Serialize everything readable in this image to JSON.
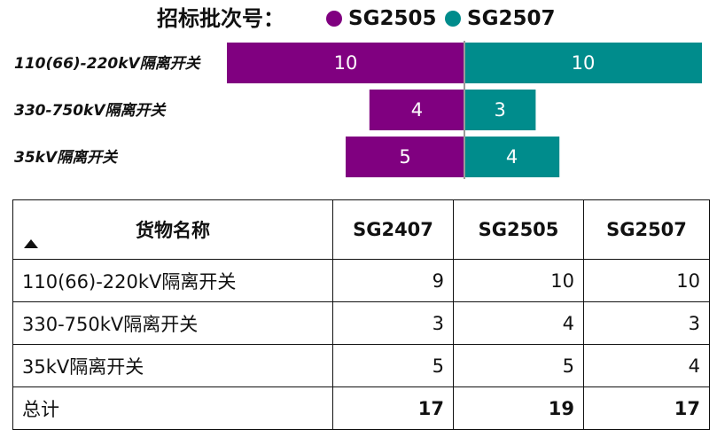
{
  "legend": {
    "title": "招标批次号：",
    "items": [
      {
        "label": "SG2505",
        "color": "#800080"
      },
      {
        "label": "SG2507",
        "color": "#008C8C"
      }
    ]
  },
  "chart_data": {
    "type": "bar",
    "orientation": "horizontal-diverging",
    "categories": [
      "110(66)-220kV隔离开关",
      "330-750kV隔离开关",
      "35kV隔离开关"
    ],
    "series": [
      {
        "name": "SG2505",
        "values": [
          10,
          4,
          5
        ],
        "color": "#800080",
        "side": "left"
      },
      {
        "name": "SG2507",
        "values": [
          10,
          3,
          4
        ],
        "color": "#008C8C",
        "side": "right"
      }
    ],
    "legend_position": "top",
    "grid": false
  },
  "table": {
    "headers": [
      "货物名称",
      "SG2407",
      "SG2505",
      "SG2507"
    ],
    "sort_indicator": "ascending",
    "rows": [
      [
        "110(66)-220kV隔离开关",
        "9",
        "10",
        "10"
      ],
      [
        "330-750kV隔离开关",
        "3",
        "4",
        "3"
      ],
      [
        "35kV隔离开关",
        "5",
        "5",
        "4"
      ]
    ],
    "total": [
      "总计",
      "17",
      "19",
      "17"
    ]
  }
}
